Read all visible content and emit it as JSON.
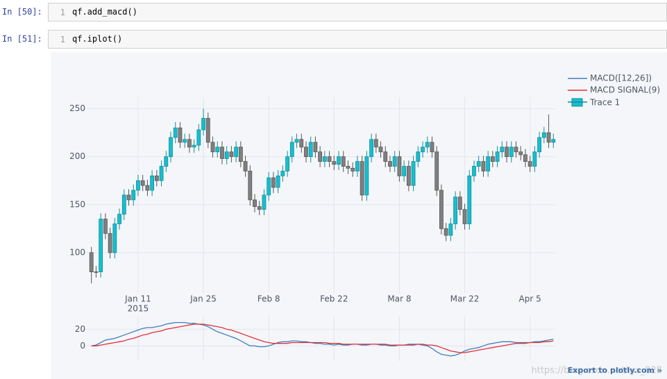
{
  "cells": [
    {
      "prompt": "In [50]:",
      "line": "1",
      "code": "qf.add_macd()"
    },
    {
      "prompt": "In [51]:",
      "line": "1",
      "code": "qf.iplot()"
    }
  ],
  "export_link": "Export to plotly.com »",
  "watermark": "https://blog.csdn.net/lys_828",
  "chart_data": [
    {
      "type": "candlestick",
      "name": "Trace 1",
      "increasing_color": "#17BECF",
      "decreasing_color": "#808080",
      "x": [
        "2015-01-01",
        "2015-01-02",
        "2015-01-03",
        "2015-01-04",
        "2015-01-05",
        "2015-01-06",
        "2015-01-07",
        "2015-01-08",
        "2015-01-09",
        "2015-01-10",
        "2015-01-11",
        "2015-01-12",
        "2015-01-13",
        "2015-01-14",
        "2015-01-15",
        "2015-01-16",
        "2015-01-17",
        "2015-01-18",
        "2015-01-19",
        "2015-01-20",
        "2015-01-21",
        "2015-01-22",
        "2015-01-23",
        "2015-01-24",
        "2015-01-25",
        "2015-01-26",
        "2015-01-27",
        "2015-01-28",
        "2015-01-29",
        "2015-01-30",
        "2015-01-31",
        "2015-02-01",
        "2015-02-02",
        "2015-02-03",
        "2015-02-04",
        "2015-02-05",
        "2015-02-06",
        "2015-02-07",
        "2015-02-08",
        "2015-02-09",
        "2015-02-10",
        "2015-02-11",
        "2015-02-12",
        "2015-02-13",
        "2015-02-14",
        "2015-02-15",
        "2015-02-16",
        "2015-02-17",
        "2015-02-18",
        "2015-02-19",
        "2015-02-20",
        "2015-02-21",
        "2015-02-22",
        "2015-02-23",
        "2015-02-24",
        "2015-02-25",
        "2015-02-26",
        "2015-02-27",
        "2015-02-28",
        "2015-03-01",
        "2015-03-02",
        "2015-03-03",
        "2015-03-04",
        "2015-03-05",
        "2015-03-06",
        "2015-03-07",
        "2015-03-08",
        "2015-03-09",
        "2015-03-10",
        "2015-03-11",
        "2015-03-12",
        "2015-03-13",
        "2015-03-14",
        "2015-03-15",
        "2015-03-16",
        "2015-03-17",
        "2015-03-18",
        "2015-03-19",
        "2015-03-20",
        "2015-03-21",
        "2015-03-22",
        "2015-03-23",
        "2015-03-24",
        "2015-03-25",
        "2015-03-26",
        "2015-03-27",
        "2015-03-28",
        "2015-03-29",
        "2015-03-30",
        "2015-03-31",
        "2015-04-01",
        "2015-04-02",
        "2015-04-03",
        "2015-04-04",
        "2015-04-05",
        "2015-04-06",
        "2015-04-07",
        "2015-04-08",
        "2015-04-09",
        "2015-04-10"
      ],
      "open": [
        100,
        80,
        80,
        135,
        120,
        100,
        130,
        140,
        160,
        155,
        165,
        175,
        170,
        165,
        180,
        175,
        190,
        200,
        220,
        230,
        215,
        218,
        210,
        212,
        228,
        240,
        215,
        205,
        210,
        198,
        205,
        200,
        210,
        195,
        185,
        155,
        148,
        145,
        160,
        178,
        168,
        180,
        185,
        200,
        215,
        218,
        210,
        200,
        215,
        205,
        195,
        200,
        195,
        192,
        200,
        190,
        188,
        185,
        195,
        160,
        200,
        218,
        210,
        205,
        195,
        190,
        200,
        180,
        190,
        170,
        195,
        205,
        210,
        215,
        205,
        165,
        125,
        118,
        130,
        158,
        145,
        130,
        180,
        190,
        195,
        185,
        200,
        195,
        205,
        210,
        200,
        210,
        205,
        202,
        195,
        190,
        205,
        220,
        225,
        215
      ],
      "high": [
        106,
        86,
        141,
        141,
        126,
        136,
        146,
        166,
        166,
        171,
        181,
        181,
        176,
        186,
        186,
        196,
        206,
        226,
        236,
        236,
        224,
        224,
        218,
        234,
        250,
        246,
        221,
        216,
        216,
        211,
        211,
        216,
        216,
        201,
        191,
        161,
        154,
        166,
        184,
        184,
        186,
        191,
        206,
        221,
        224,
        224,
        216,
        221,
        221,
        211,
        206,
        206,
        201,
        206,
        206,
        196,
        194,
        201,
        201,
        206,
        224,
        224,
        216,
        211,
        201,
        206,
        206,
        196,
        196,
        201,
        211,
        216,
        221,
        221,
        211,
        171,
        131,
        136,
        164,
        164,
        151,
        186,
        196,
        201,
        201,
        206,
        206,
        211,
        216,
        216,
        216,
        216,
        211,
        208,
        201,
        211,
        226,
        231,
        244,
        224
      ],
      "low": [
        68,
        74,
        74,
        114,
        94,
        94,
        124,
        134,
        149,
        149,
        159,
        164,
        159,
        159,
        169,
        169,
        184,
        194,
        214,
        209,
        209,
        204,
        204,
        206,
        222,
        209,
        199,
        199,
        192,
        192,
        194,
        194,
        189,
        179,
        149,
        142,
        139,
        139,
        154,
        162,
        162,
        174,
        179,
        194,
        209,
        204,
        194,
        194,
        199,
        189,
        189,
        189,
        186,
        186,
        184,
        182,
        179,
        179,
        154,
        154,
        194,
        204,
        199,
        189,
        184,
        184,
        174,
        174,
        164,
        164,
        189,
        199,
        204,
        199,
        159,
        119,
        112,
        112,
        124,
        139,
        124,
        124,
        174,
        184,
        179,
        179,
        189,
        189,
        199,
        194,
        194,
        199,
        196,
        189,
        184,
        184,
        199,
        214,
        209,
        209
      ],
      "close": [
        80,
        80,
        135,
        120,
        100,
        130,
        140,
        160,
        155,
        165,
        175,
        170,
        165,
        180,
        175,
        190,
        200,
        220,
        230,
        215,
        218,
        210,
        212,
        228,
        240,
        215,
        205,
        210,
        198,
        205,
        200,
        210,
        195,
        185,
        155,
        148,
        145,
        160,
        178,
        168,
        180,
        185,
        200,
        215,
        218,
        210,
        200,
        215,
        205,
        195,
        200,
        195,
        192,
        200,
        190,
        188,
        185,
        195,
        160,
        200,
        218,
        210,
        205,
        195,
        190,
        200,
        180,
        190,
        170,
        195,
        205,
        210,
        215,
        205,
        165,
        125,
        118,
        130,
        158,
        145,
        130,
        180,
        190,
        195,
        185,
        200,
        195,
        205,
        210,
        200,
        210,
        205,
        202,
        195,
        190,
        205,
        220,
        225,
        215,
        218
      ],
      "xlim": [
        "2014-12-31",
        "2015-04-11"
      ],
      "xticks": [
        {
          "value": "2015-01-11",
          "label": "Jan 11"
        },
        {
          "value": "2015-01-25",
          "label": "Jan 25"
        },
        {
          "value": "2015-02-08",
          "label": "Feb 8"
        },
        {
          "value": "2015-02-22",
          "label": "Feb 22"
        },
        {
          "value": "2015-03-08",
          "label": "Mar 8"
        },
        {
          "value": "2015-03-22",
          "label": "Mar 22"
        },
        {
          "value": "2015-04-05",
          "label": "Apr 5"
        }
      ],
      "x_year_label": "2015",
      "ylim": [
        58,
        262
      ],
      "yticks": [
        100,
        150,
        200,
        250
      ],
      "grid": true
    },
    {
      "type": "line",
      "ylim": [
        -18,
        36
      ],
      "yticks": [
        0,
        20
      ],
      "grid": true,
      "series": [
        {
          "name": "MACD([12,26])",
          "color": "#3f7fbf",
          "values": [
            0,
            1,
            4,
            7,
            8,
            9,
            11,
            13,
            15,
            17,
            19,
            21,
            22,
            22,
            23,
            24,
            26,
            27,
            28,
            28,
            28,
            27,
            27,
            26,
            25,
            23,
            20,
            17,
            15,
            13,
            11,
            9,
            6,
            3,
            0,
            0,
            -1,
            -1,
            0,
            2,
            4,
            5,
            5,
            6,
            6,
            5,
            5,
            4,
            3,
            3,
            2,
            2,
            1,
            2,
            1,
            1,
            2,
            2,
            1,
            1,
            2,
            2,
            1,
            1,
            0,
            0,
            1,
            1,
            2,
            2,
            2,
            1,
            0,
            -3,
            -7,
            -10,
            -11,
            -12,
            -11,
            -9,
            -6,
            -4,
            -3,
            -2,
            0,
            2,
            3,
            4,
            5,
            5,
            5,
            4,
            4,
            4,
            4,
            5,
            5,
            6,
            7,
            8
          ]
        },
        {
          "name": "MACD SIGNAL(9)",
          "color": "#e0303a",
          "values": [
            0,
            0,
            1,
            2,
            3,
            4,
            5,
            6,
            8,
            9,
            11,
            13,
            14,
            16,
            17,
            18,
            20,
            21,
            22,
            23,
            24,
            25,
            26,
            26,
            26,
            25,
            24,
            23,
            22,
            20,
            19,
            17,
            15,
            13,
            11,
            9,
            7,
            5,
            4,
            3,
            3,
            3,
            3,
            4,
            4,
            4,
            4,
            4,
            4,
            4,
            4,
            3,
            3,
            3,
            2,
            2,
            2,
            2,
            2,
            2,
            2,
            2,
            2,
            2,
            1,
            1,
            1,
            1,
            1,
            1,
            2,
            2,
            1,
            1,
            0,
            -2,
            -4,
            -6,
            -7,
            -8,
            -8,
            -7,
            -6,
            -5,
            -4,
            -3,
            -2,
            -1,
            0,
            1,
            2,
            3,
            3,
            3,
            4,
            4,
            4,
            5,
            5,
            6
          ]
        }
      ]
    }
  ]
}
